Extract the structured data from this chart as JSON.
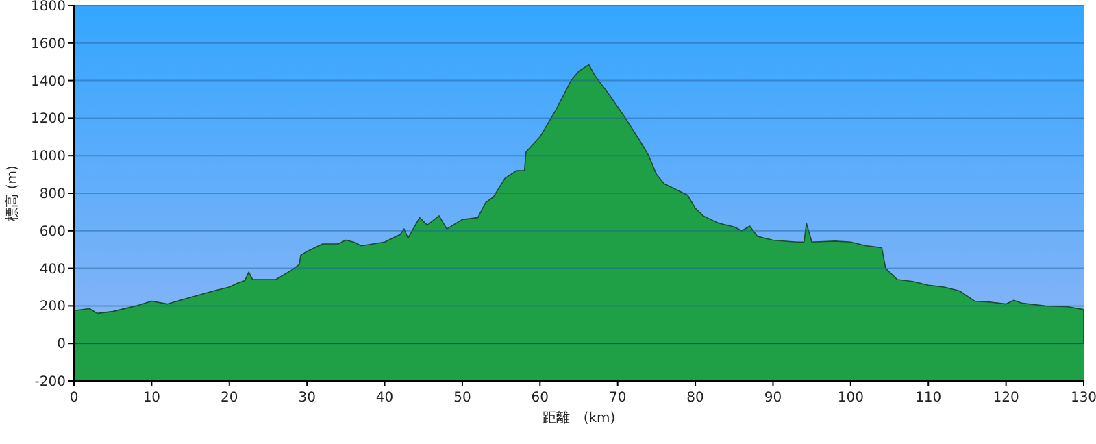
{
  "chart_data": {
    "type": "area",
    "xlabel": "距離　(km)",
    "ylabel": "標高 (m)",
    "x": [
      0,
      2,
      3,
      5,
      8,
      10,
      12,
      15,
      18,
      20,
      21,
      22,
      22.5,
      23,
      26,
      28,
      29,
      29.2,
      30,
      32,
      34,
      35,
      36,
      37,
      40,
      42,
      42.5,
      43,
      44.5,
      45.5,
      47,
      48,
      50,
      52,
      53,
      54,
      55.5,
      57,
      58,
      58.2,
      60,
      61,
      62,
      63,
      64,
      65,
      66.3,
      67,
      69,
      71,
      73,
      74,
      75,
      76,
      77,
      79,
      80,
      81,
      82,
      83,
      85,
      86,
      87,
      88,
      89,
      90,
      93,
      94,
      94.3,
      95,
      98,
      100,
      102,
      104,
      104.5,
      106,
      108,
      110,
      112,
      114,
      116,
      118,
      120,
      121,
      122,
      125,
      128,
      130
    ],
    "series": [
      {
        "color": "#1fa046",
        "values": [
          175,
          185,
          160,
          170,
          200,
          225,
          210,
          245,
          280,
          300,
          320,
          335,
          380,
          340,
          340,
          390,
          420,
          470,
          490,
          530,
          530,
          550,
          540,
          520,
          540,
          580,
          610,
          560,
          670,
          630,
          680,
          610,
          660,
          670,
          750,
          780,
          880,
          920,
          920,
          1020,
          1100,
          1170,
          1240,
          1320,
          1400,
          1450,
          1485,
          1430,
          1320,
          1200,
          1070,
          1000,
          900,
          850,
          830,
          790,
          720,
          680,
          660,
          640,
          620,
          600,
          625,
          570,
          560,
          550,
          540,
          540,
          640,
          540,
          545,
          540,
          520,
          510,
          400,
          340,
          330,
          310,
          300,
          280,
          225,
          220,
          210,
          230,
          215,
          200,
          195,
          180
        ]
      }
    ],
    "xlim": [
      0,
      130
    ],
    "ylim": [
      -200,
      1800
    ],
    "xticks": [
      0,
      10,
      20,
      30,
      40,
      50,
      60,
      70,
      80,
      90,
      100,
      110,
      120,
      130
    ],
    "yticks": [
      -200,
      0,
      200,
      400,
      600,
      800,
      1000,
      1200,
      1400,
      1600,
      1800
    ],
    "bands": [
      {
        "axis": "y",
        "from": -200,
        "to": 0,
        "color": "#1fa046"
      }
    ],
    "grid": "y"
  }
}
